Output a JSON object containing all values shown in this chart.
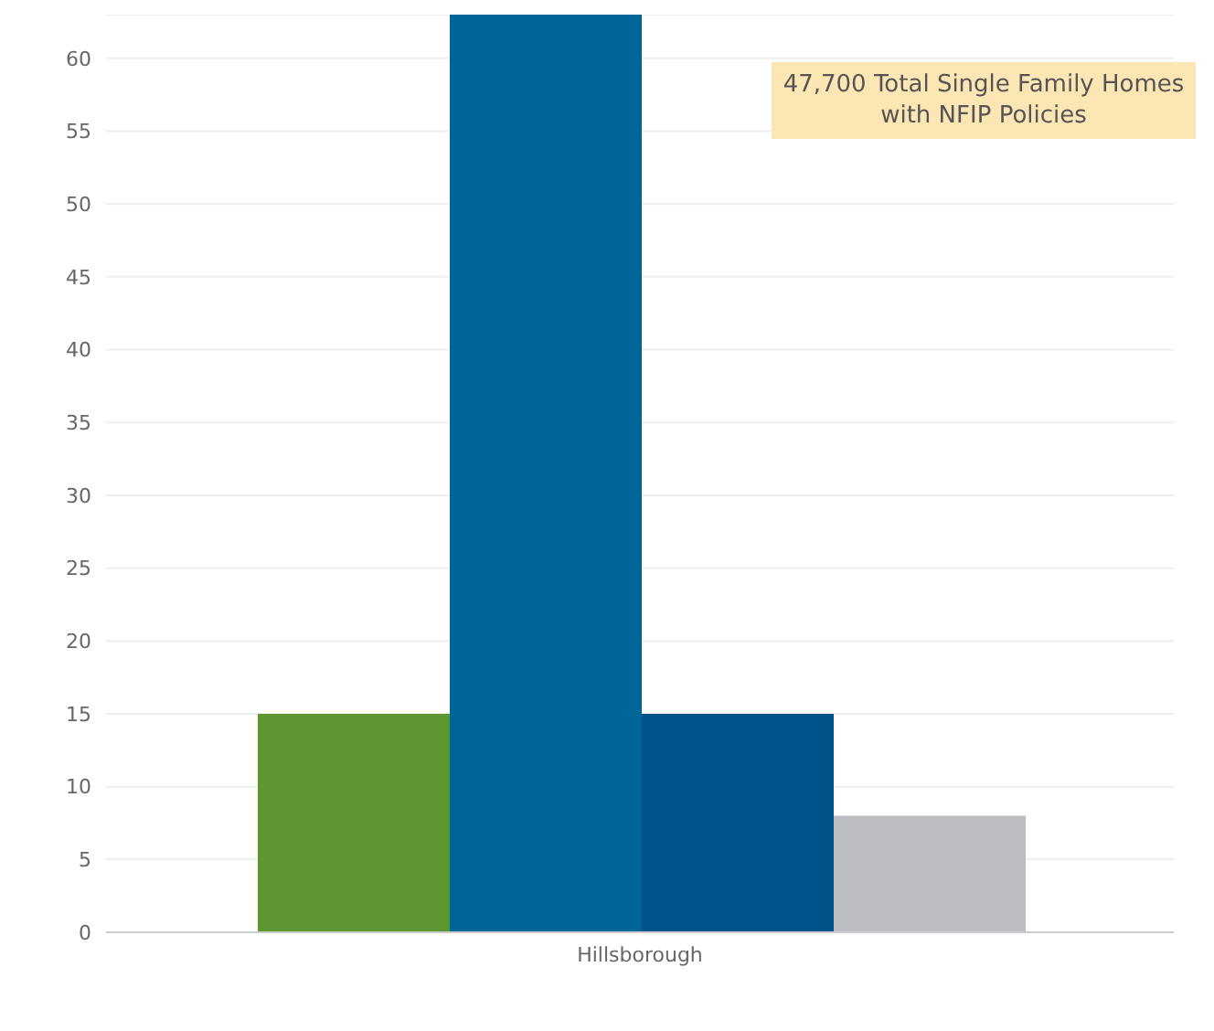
{
  "chart_data": {
    "type": "bar",
    "categories": [
      "Hillsborough"
    ],
    "series": [
      {
        "color": "#5e9732",
        "values": [
          15
        ]
      },
      {
        "color": "#006699",
        "values": [
          63
        ]
      },
      {
        "color": "#00528a",
        "values": [
          15
        ]
      },
      {
        "color": "#bcbdc0",
        "values": [
          8
        ]
      }
    ],
    "ylim": [
      0,
      63
    ],
    "yticks": [
      0,
      5,
      10,
      15,
      20,
      25,
      30,
      35,
      40,
      45,
      50,
      55,
      60
    ],
    "grid": "y",
    "legend": false,
    "annotations": [
      "47,700 Total Single Family Homes with NFIP Policies"
    ]
  }
}
